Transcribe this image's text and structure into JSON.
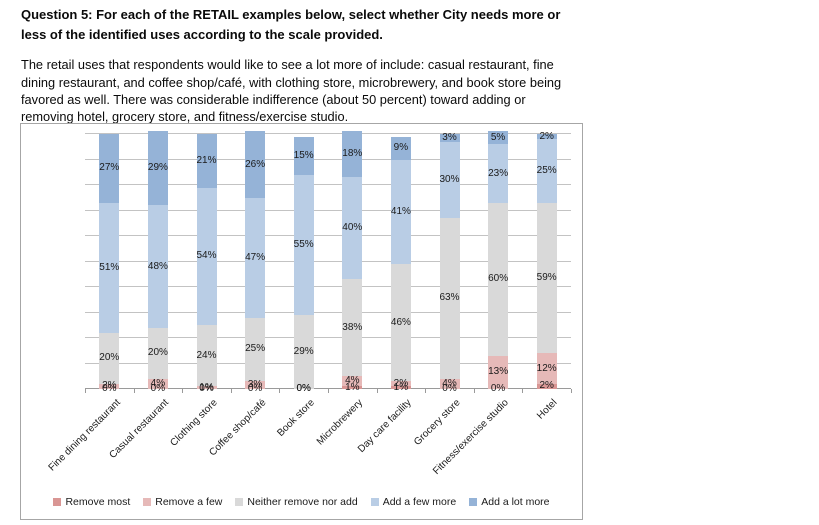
{
  "document": {
    "question_bold": "Question 5: For each of the RETAIL examples below, select whether City needs more or less of the identified uses according to the scale provided.",
    "paragraph": "The retail uses that respondents would like to see a lot more of include: casual restaurant, fine dining restaurant, and coffee shop/café, with clothing store, microbrewery, and book store being favored as well.  There was considerable indifference (about 50 percent) toward adding or removing hotel, grocery store, and fitness/exercise studio."
  },
  "chart_data": {
    "type": "bar",
    "stacked": true,
    "orientation": "vertical",
    "categories": [
      "Fine dining restaurant",
      "Casual restaurant",
      "Clothing store",
      "Coffee shop/café",
      "Book store",
      "Microbrewery",
      "Day care facility",
      "Grocery store",
      "Fitness/exercise studio",
      "Hotel"
    ],
    "series": [
      {
        "name": "Remove most",
        "color": "#D99694",
        "values": [
          0,
          0,
          0,
          0,
          0,
          1,
          1,
          0,
          0,
          2
        ]
      },
      {
        "name": "Remove a few",
        "color": "#E6B9B8",
        "values": [
          2,
          4,
          1,
          3,
          0,
          4,
          2,
          4,
          13,
          12
        ]
      },
      {
        "name": "Neither remove nor add",
        "color": "#D9D9D9",
        "values": [
          20,
          20,
          24,
          25,
          29,
          38,
          46,
          63,
          60,
          59
        ]
      },
      {
        "name": "Add a few more",
        "color": "#B9CDE5",
        "values": [
          51,
          48,
          54,
          47,
          55,
          40,
          41,
          30,
          23,
          25
        ]
      },
      {
        "name": "Add a lot more",
        "color": "#95B3D7",
        "values": [
          27,
          29,
          21,
          26,
          15,
          18,
          9,
          3,
          5,
          2
        ]
      }
    ],
    "title": "",
    "xlabel": "",
    "ylabel": "",
    "ylim": [
      0,
      100
    ],
    "gridline_step": 10,
    "grid": true,
    "legend_position": "bottom",
    "value_suffix": "%",
    "data_labels": true
  }
}
